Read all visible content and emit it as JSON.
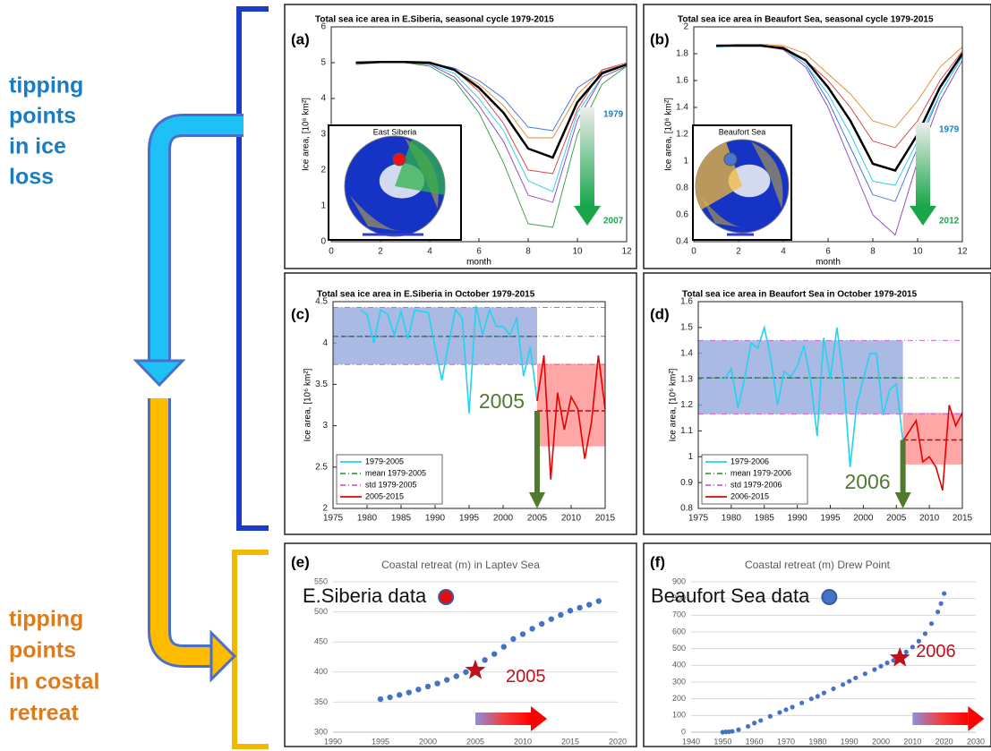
{
  "side_labels": [
    {
      "lines": [
        "tipping",
        "points",
        "in ice",
        "loss"
      ]
    },
    {
      "lines": [
        "tipping",
        "points",
        "in costal",
        "retreat"
      ]
    }
  ],
  "chart_data": [
    {
      "type": "line",
      "label": "(a)",
      "title": "Total sea ice area in E.Siberia, seasonal cycle 1979-2015",
      "xlabel": "month",
      "ylabel": "Ice area, [10⁶ km²]",
      "x": [
        1,
        2,
        3,
        4,
        5,
        6,
        7,
        8,
        9,
        10,
        11,
        12
      ],
      "xlim": [
        0,
        12
      ],
      "xticks": [
        0,
        2,
        4,
        6,
        8,
        10,
        12
      ],
      "ylim": [
        0,
        6
      ],
      "yticks": [
        0,
        1,
        2,
        3,
        4,
        5,
        6
      ],
      "grid": false,
      "series": [
        {
          "color": "#3b6fd8",
          "values": [
            5.0,
            5.0,
            5.0,
            5.0,
            4.85,
            4.5,
            4.0,
            3.2,
            3.1,
            4.3,
            4.75,
            4.95
          ]
        },
        {
          "color": "#e08a2c",
          "values": [
            5.0,
            5.0,
            5.0,
            5.0,
            4.8,
            4.4,
            3.8,
            2.9,
            2.9,
            4.1,
            4.8,
            4.95
          ]
        },
        {
          "color": "#d63a3a",
          "values": [
            5.0,
            5.0,
            5.0,
            5.0,
            4.8,
            4.2,
            3.3,
            2.0,
            1.9,
            3.7,
            4.8,
            5.0
          ]
        },
        {
          "color": "#22ccee",
          "values": [
            5.0,
            5.0,
            5.0,
            4.95,
            4.7,
            4.0,
            3.1,
            1.7,
            1.4,
            3.6,
            4.6,
            4.9
          ]
        },
        {
          "color": "#8a3fbf",
          "values": [
            5.0,
            5.0,
            5.0,
            4.95,
            4.6,
            3.8,
            2.8,
            1.3,
            1.1,
            3.4,
            4.6,
            4.9
          ]
        },
        {
          "color": "#2f9a3a",
          "values": [
            4.95,
            5.0,
            5.0,
            4.9,
            4.5,
            3.6,
            2.2,
            0.5,
            0.4,
            3.0,
            4.4,
            4.9
          ]
        },
        {
          "color": "#000000",
          "values": [
            5.0,
            5.02,
            5.02,
            5.0,
            4.8,
            4.3,
            3.6,
            2.6,
            2.35,
            3.9,
            4.7,
            4.95
          ]
        }
      ],
      "inset": {
        "title": "East Siberia"
      },
      "gradient_legend": [
        "1979",
        "2007"
      ]
    },
    {
      "type": "line",
      "label": "(b)",
      "title": "Total sea ice area in Beaufort Sea, seasonal cycle 1979-2015",
      "xlabel": "month",
      "ylabel": "Ice area, [10⁶ km²]",
      "x": [
        1,
        2,
        3,
        4,
        5,
        6,
        7,
        8,
        9,
        10,
        11,
        12
      ],
      "xlim": [
        0,
        12
      ],
      "xticks": [
        0,
        2,
        4,
        6,
        8,
        10,
        12
      ],
      "ylim": [
        0.4,
        2
      ],
      "yticks": [
        0.4,
        0.6,
        0.8,
        1,
        1.2,
        1.4,
        1.6,
        1.8,
        2
      ],
      "grid": false,
      "series": [
        {
          "color": "#e08a2c",
          "values": [
            1.86,
            1.87,
            1.87,
            1.86,
            1.8,
            1.65,
            1.5,
            1.3,
            1.25,
            1.45,
            1.7,
            1.85
          ]
        },
        {
          "color": "#d63a3a",
          "values": [
            1.85,
            1.86,
            1.86,
            1.85,
            1.75,
            1.6,
            1.4,
            1.15,
            1.1,
            1.3,
            1.6,
            1.82
          ]
        },
        {
          "color": "#3b6fd8",
          "values": [
            1.86,
            1.86,
            1.86,
            1.84,
            1.72,
            1.45,
            1.1,
            0.75,
            0.7,
            1.1,
            1.5,
            1.78
          ]
        },
        {
          "color": "#22ccee",
          "values": [
            1.85,
            1.86,
            1.86,
            1.84,
            1.72,
            1.5,
            1.2,
            0.85,
            0.82,
            1.15,
            1.5,
            1.78
          ]
        },
        {
          "color": "#8a3fbf",
          "values": [
            1.86,
            1.86,
            1.86,
            1.83,
            1.7,
            1.4,
            1.0,
            0.6,
            0.45,
            1.0,
            1.45,
            1.75
          ]
        },
        {
          "color": "#000000",
          "values": [
            1.86,
            1.86,
            1.86,
            1.84,
            1.75,
            1.55,
            1.3,
            0.98,
            0.93,
            1.2,
            1.55,
            1.8
          ]
        }
      ],
      "inset": {
        "title": "Beaufort Sea"
      },
      "gradient_legend": [
        "1979",
        "2012"
      ]
    },
    {
      "type": "band",
      "label": "(c)",
      "title": "Total sea ice area in E.Siberia in October 1979-2015",
      "ylabel": "Ice area, [10⁶ km²]",
      "xlim": [
        1975,
        2015
      ],
      "xticks": [
        1975,
        1980,
        1985,
        1990,
        1995,
        2000,
        2005,
        2010,
        2015
      ],
      "ylim": [
        2,
        4.5
      ],
      "yticks": [
        2,
        2.5,
        3,
        3.5,
        4,
        4.5
      ],
      "grid": false,
      "legend": "lower left",
      "bands": [
        {
          "x": [
            1975,
            2005
          ],
          "range": [
            3.74,
            4.43
          ],
          "mean": 4.08,
          "color": "#8ea3d9"
        },
        {
          "x": [
            2005,
            2015
          ],
          "range": [
            2.75,
            3.75
          ],
          "mean": 3.18,
          "color": "#ff8a8a"
        }
      ],
      "hlines": [
        {
          "name": "mean 1979-2005",
          "values": [
            4.08
          ],
          "color": "#3aa33a"
        },
        {
          "name": "std 1979-2005",
          "values": [
            4.43,
            3.74
          ],
          "color": "#cc66cc"
        }
      ],
      "series": [
        {
          "name": "1979-2005",
          "color": "#22d3f0",
          "x": [
            1979,
            1980,
            1981,
            1982,
            1983,
            1984,
            1985,
            1986,
            1987,
            1988,
            1989,
            1990,
            1991,
            1992,
            1993,
            1994,
            1995,
            1996,
            1997,
            1998,
            1999,
            2000,
            2001,
            2002,
            2003,
            2004,
            2005
          ],
          "values": [
            4.4,
            4.35,
            4.0,
            4.4,
            4.35,
            4.1,
            4.38,
            4.05,
            4.4,
            4.38,
            4.37,
            3.95,
            3.55,
            4.0,
            4.4,
            4.3,
            3.15,
            4.45,
            4.1,
            4.4,
            4.2,
            4.2,
            4.1,
            4.3,
            3.6,
            3.95,
            3.3
          ]
        },
        {
          "name": "2005-2015",
          "color": "#e60000",
          "x": [
            2005,
            2006,
            2007,
            2008,
            2009,
            2010,
            2011,
            2012,
            2013,
            2014,
            2015
          ],
          "values": [
            3.3,
            3.85,
            2.35,
            3.4,
            2.95,
            3.35,
            3.2,
            2.6,
            3.05,
            3.85,
            3.2
          ]
        }
      ],
      "annotation": "2005"
    },
    {
      "type": "band",
      "label": "(d)",
      "title": "Total sea ice area in Beaufort Sea in October 1979-2015",
      "ylabel": "Ice area, [10⁶ km²]",
      "xlim": [
        1975,
        2015
      ],
      "xticks": [
        1975,
        1980,
        1985,
        1990,
        1995,
        2000,
        2005,
        2010,
        2015
      ],
      "ylim": [
        0.8,
        1.6
      ],
      "yticks": [
        0.8,
        0.9,
        1,
        1.1,
        1.2,
        1.3,
        1.4,
        1.5,
        1.6
      ],
      "grid": false,
      "legend": "lower left",
      "bands": [
        {
          "x": [
            1975,
            2006
          ],
          "range": [
            1.165,
            1.45
          ],
          "mean": 1.305,
          "color": "#8ea3d9"
        },
        {
          "x": [
            2006,
            2015
          ],
          "range": [
            0.97,
            1.17
          ],
          "mean": 1.065,
          "color": "#ff8a8a"
        }
      ],
      "hlines": [
        {
          "name": "mean 1979-2006",
          "values": [
            1.305
          ],
          "color": "#3aa33a"
        },
        {
          "name": "std 1979-2006",
          "values": [
            1.45,
            1.165
          ],
          "color": "#cc66cc"
        }
      ],
      "series": [
        {
          "name": "1979-2006",
          "color": "#22d3f0",
          "x": [
            1979,
            1980,
            1981,
            1982,
            1983,
            1984,
            1985,
            1986,
            1987,
            1988,
            1989,
            1990,
            1991,
            1992,
            1993,
            1994,
            1995,
            1996,
            1997,
            1998,
            1999,
            2000,
            2001,
            2002,
            2003,
            2004,
            2005,
            2006
          ],
          "values": [
            1.3,
            1.34,
            1.19,
            1.3,
            1.44,
            1.42,
            1.5,
            1.38,
            1.2,
            1.33,
            1.31,
            1.35,
            1.43,
            1.3,
            1.08,
            1.46,
            1.3,
            1.5,
            1.3,
            0.96,
            1.2,
            1.3,
            1.4,
            1.4,
            1.16,
            1.26,
            1.28,
            1.06
          ]
        },
        {
          "name": "2006-2015",
          "color": "#e60000",
          "x": [
            2006,
            2007,
            2008,
            2009,
            2010,
            2011,
            2012,
            2013,
            2014,
            2015
          ],
          "values": [
            1.06,
            1.1,
            1.14,
            0.98,
            1.0,
            0.96,
            0.87,
            1.2,
            1.12,
            1.17
          ]
        }
      ],
      "annotation": "2006"
    },
    {
      "type": "scatter",
      "label": "(e)",
      "title": "Coastal retreat (m) in Laptev Sea",
      "annotation": "E.Siberia data",
      "icon_color": "#e01010",
      "xlim": [
        1990,
        2020
      ],
      "xticks": [
        1990,
        1995,
        2000,
        2005,
        2010,
        2015,
        2020
      ],
      "ylim": [
        300,
        550
      ],
      "yticks": [
        300,
        350,
        400,
        450,
        500,
        550
      ],
      "grid": true,
      "color": "#4472c4",
      "x": [
        1995,
        1996,
        1997,
        1998,
        1999,
        2000,
        2001,
        2002,
        2003,
        2004,
        2005,
        2006,
        2007,
        2008,
        2009,
        2010,
        2011,
        2012,
        2013,
        2014,
        2015,
        2016,
        2017,
        2018
      ],
      "values": [
        355,
        358,
        362,
        366,
        371,
        376,
        381,
        387,
        393,
        400,
        407,
        420,
        430,
        442,
        455,
        463,
        472,
        480,
        488,
        495,
        502,
        507,
        512,
        518
      ],
      "star": {
        "x": 2005,
        "y": 403,
        "label": "2005"
      }
    },
    {
      "type": "scatter",
      "label": "(f)",
      "title": "Coastal retreat (m) Drew Point",
      "annotation": "Beaufort Sea data",
      "icon_color": "#4472c4",
      "xlim": [
        1940,
        2030
      ],
      "xticks": [
        1940,
        1950,
        1960,
        1970,
        1980,
        1990,
        2000,
        2010,
        2020,
        2030
      ],
      "ylim": [
        0,
        900
      ],
      "yticks": [
        0,
        100,
        200,
        300,
        400,
        500,
        600,
        700,
        800,
        900
      ],
      "grid": true,
      "color": "#4472c4",
      "x": [
        1950,
        1951,
        1952,
        1953,
        1955,
        1958,
        1960,
        1962,
        1965,
        1968,
        1970,
        1972,
        1975,
        1978,
        1980,
        1982,
        1985,
        1988,
        1990,
        1992,
        1995,
        1998,
        2000,
        2002,
        2004,
        2006,
        2008,
        2010,
        2012,
        2014,
        2016,
        2018,
        2019,
        2020
      ],
      "values": [
        0,
        2,
        3,
        5,
        15,
        35,
        55,
        70,
        95,
        118,
        135,
        150,
        175,
        200,
        215,
        235,
        260,
        285,
        305,
        325,
        350,
        375,
        395,
        415,
        430,
        455,
        480,
        510,
        545,
        590,
        650,
        720,
        770,
        830
      ],
      "star": {
        "x": 2006,
        "y": 445,
        "label": "2006"
      }
    }
  ]
}
